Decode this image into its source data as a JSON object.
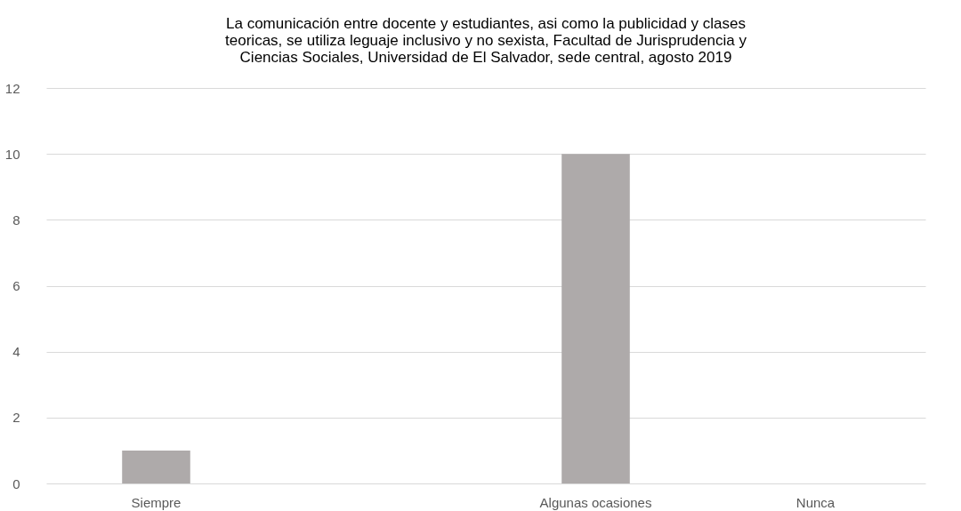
{
  "chart_data": {
    "type": "bar",
    "title": [
      "La comunicación entre docente y estudiantes, asi como la publicidad y clases",
      "teoricas, se utiliza leguaje inclusivo y no sexista, Facultad de Jurisprudencia y",
      "Ciencias Sociales, Universidad de El Salvador, sede central, agosto 2019"
    ],
    "categories": [
      "Siempre",
      null,
      "Algunas ocasiones",
      "Nunca"
    ],
    "values": [
      1,
      0,
      10,
      0
    ],
    "color": "#aeaaaa",
    "ylim": [
      0,
      12
    ],
    "yticks": [
      0,
      2,
      4,
      6,
      8,
      10,
      12
    ],
    "grid": "y"
  }
}
